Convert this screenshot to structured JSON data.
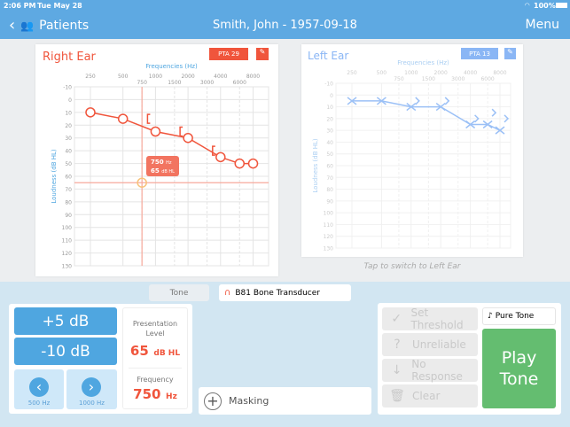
{
  "status_bar": {
    "time": "2:06 PM",
    "date": "Tue May 28",
    "battery": "100%"
  },
  "nav": {
    "back_label": "Patients",
    "title": "Smith, John - 1957-09-18",
    "menu_label": "Menu"
  },
  "right_ear": {
    "title": "Right Ear",
    "pta": "PTA 29",
    "freq_label": "Frequencies (Hz)",
    "y_label": "Loudness (dB HL)",
    "tooltip": {
      "freq": "750",
      "freq_unit": "Hz",
      "level": "65",
      "level_unit": "dB HL"
    }
  },
  "left_ear": {
    "title": "Left Ear",
    "pta": "PTA 13",
    "freq_label": "Frequencies (Hz)",
    "y_label": "Loudness (dB HL)",
    "switch_hint": "Tap to switch to Left Ear"
  },
  "chart_data": [
    {
      "type": "line",
      "name": "Right Ear",
      "x_ticks_top": [
        "250",
        "500",
        "1000",
        "2000",
        "4000",
        "8000"
      ],
      "x_ticks_mid": [
        "750",
        "1500",
        "3000",
        "6000"
      ],
      "y_ticks": [
        "-10",
        "0",
        "10",
        "20",
        "30",
        "40",
        "50",
        "60",
        "70",
        "80",
        "90",
        "100",
        "110",
        "120",
        "130"
      ],
      "ylim": [
        -10,
        130
      ],
      "air": [
        [
          250,
          10
        ],
        [
          500,
          15
        ],
        [
          1000,
          25
        ],
        [
          2000,
          30
        ],
        [
          4000,
          45
        ],
        [
          6000,
          50
        ],
        [
          8000,
          50
        ]
      ],
      "bone": [
        [
          1000,
          15
        ],
        [
          2000,
          25
        ],
        [
          4000,
          40
        ]
      ],
      "cursor": [
        750,
        65
      ],
      "color": "#f0553c"
    },
    {
      "type": "line",
      "name": "Left Ear",
      "x_ticks_top": [
        "250",
        "500",
        "1000",
        "2000",
        "4000",
        "8000"
      ],
      "x_ticks_mid": [
        "750",
        "1500",
        "3000",
        "6000"
      ],
      "y_ticks": [
        "-10",
        "0",
        "10",
        "20",
        "30",
        "40",
        "50",
        "60",
        "70",
        "80",
        "90",
        "100",
        "110",
        "120",
        "130"
      ],
      "ylim": [
        -10,
        130
      ],
      "air": [
        [
          250,
          5
        ],
        [
          500,
          5
        ],
        [
          1000,
          10
        ],
        [
          2000,
          10
        ],
        [
          4000,
          25
        ],
        [
          6000,
          25
        ],
        [
          8000,
          30
        ]
      ],
      "bone": [
        [
          1000,
          5
        ],
        [
          2000,
          5
        ],
        [
          4000,
          20
        ],
        [
          6000,
          15
        ],
        [
          8000,
          20
        ]
      ],
      "color": "#8ab6f5"
    }
  ],
  "controls": {
    "tone_label": "Tone",
    "transducer": "B81 Bone Transducer",
    "plus": "+5 dB",
    "minus": "-10 dB",
    "prev_freq": "500 Hz",
    "next_freq": "1000 Hz",
    "presentation_label": "Presentation Level",
    "level_value": "65",
    "level_unit": "dB HL",
    "frequency_label": "Frequency",
    "freq_value": "750",
    "freq_unit": "Hz",
    "masking": "Masking",
    "set_threshold": "Set Threshold",
    "unreliable": "Unreliable",
    "no_response": "No Response",
    "clear": "Clear",
    "stimulus": "Pure Tone",
    "play_line1": "Play",
    "play_line2": "Tone"
  }
}
